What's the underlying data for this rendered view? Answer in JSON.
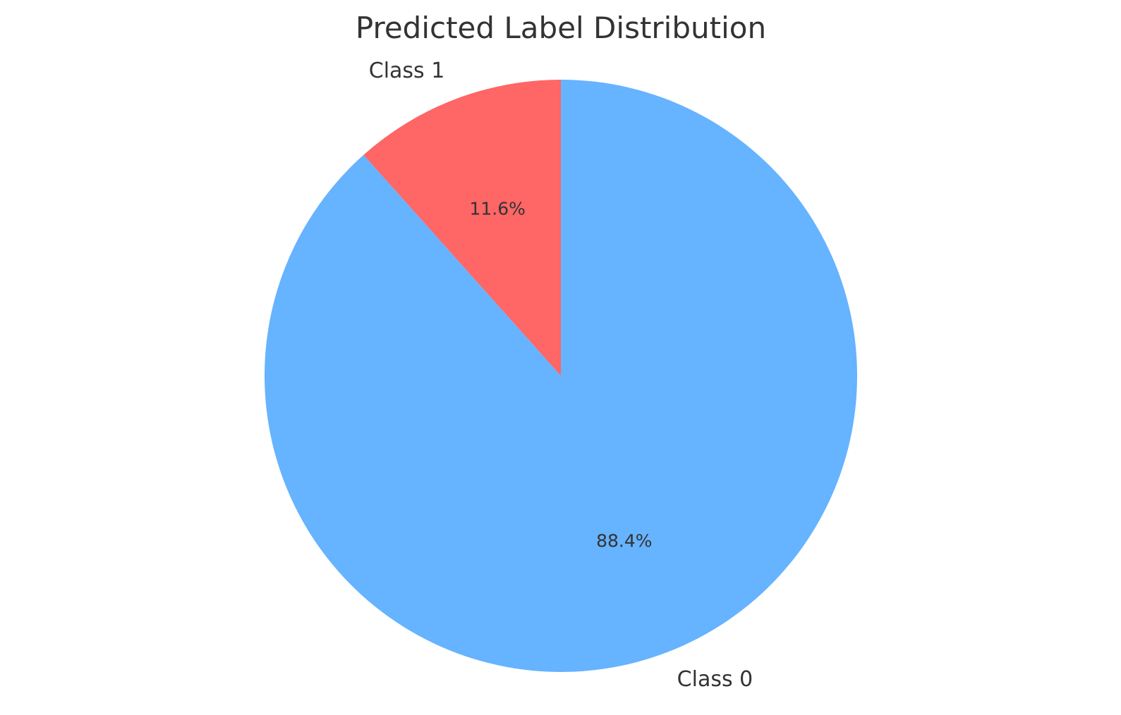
{
  "chart_data": {
    "type": "pie",
    "title": "Predicted Label Distribution",
    "categories": [
      "Class 0",
      "Class 1"
    ],
    "values": [
      88.4,
      11.6
    ],
    "value_labels": [
      "88.4%",
      "11.6%"
    ],
    "colors": [
      "#66b3ff",
      "#ff6666"
    ],
    "start_angle_deg": 90,
    "direction": "counterclockwise-from-class1",
    "legend": "none"
  }
}
